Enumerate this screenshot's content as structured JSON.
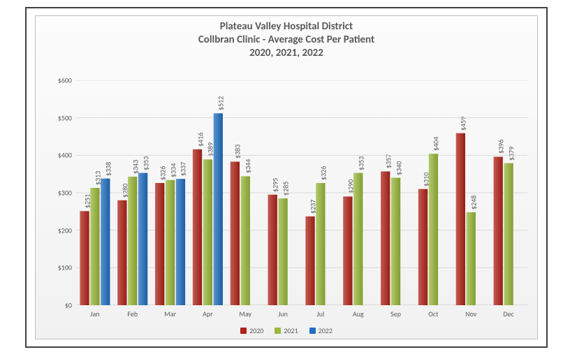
{
  "title": {
    "line1": "Plateau Valley Hospital District",
    "line2": "Collbran Clinic  - Average Cost Per Patient",
    "line3": "2020, 2021, 2022",
    "fontsize": 15,
    "color": "#595959"
  },
  "chart": {
    "type": "bar",
    "categories": [
      "Jan",
      "Feb",
      "Mar",
      "Apr",
      "May",
      "Jun",
      "Jul",
      "Aug",
      "Sep",
      "Oct",
      "Nov",
      "Dec"
    ],
    "series": [
      {
        "name": "2020",
        "color": "#b02318",
        "values": [
          251,
          280,
          326,
          416,
          383,
          295,
          237,
          290,
          357,
          310,
          459,
          396
        ]
      },
      {
        "name": "2021",
        "color": "#99b93a",
        "values": [
          313,
          343,
          334,
          389,
          344,
          285,
          326,
          353,
          340,
          404,
          248,
          379
        ]
      },
      {
        "name": "2022",
        "color": "#1f6fc2",
        "values": [
          338,
          353,
          337,
          512,
          null,
          null,
          null,
          null,
          null,
          null,
          null,
          null
        ]
      }
    ],
    "ylim": [
      0,
      600
    ],
    "ytick_step": 100,
    "yformat_prefix": "$",
    "label_prefix": "$",
    "label_fontsize": 10,
    "label_color": "#595959",
    "grid_color": "#d9d9d9",
    "axis_color": "#bfbfbf",
    "tick_color": "#bfbfbf",
    "background_gradient": [
      "#fcfcfc",
      "#f1f1f1"
    ],
    "bar_group_width": 0.8,
    "bar_gap": 0.03
  },
  "legend": {
    "items": [
      {
        "label": "2020",
        "swatch": "#b02318"
      },
      {
        "label": "2021",
        "swatch": "#99b93a"
      },
      {
        "label": "2022",
        "swatch": "#1f6fc2"
      }
    ]
  }
}
